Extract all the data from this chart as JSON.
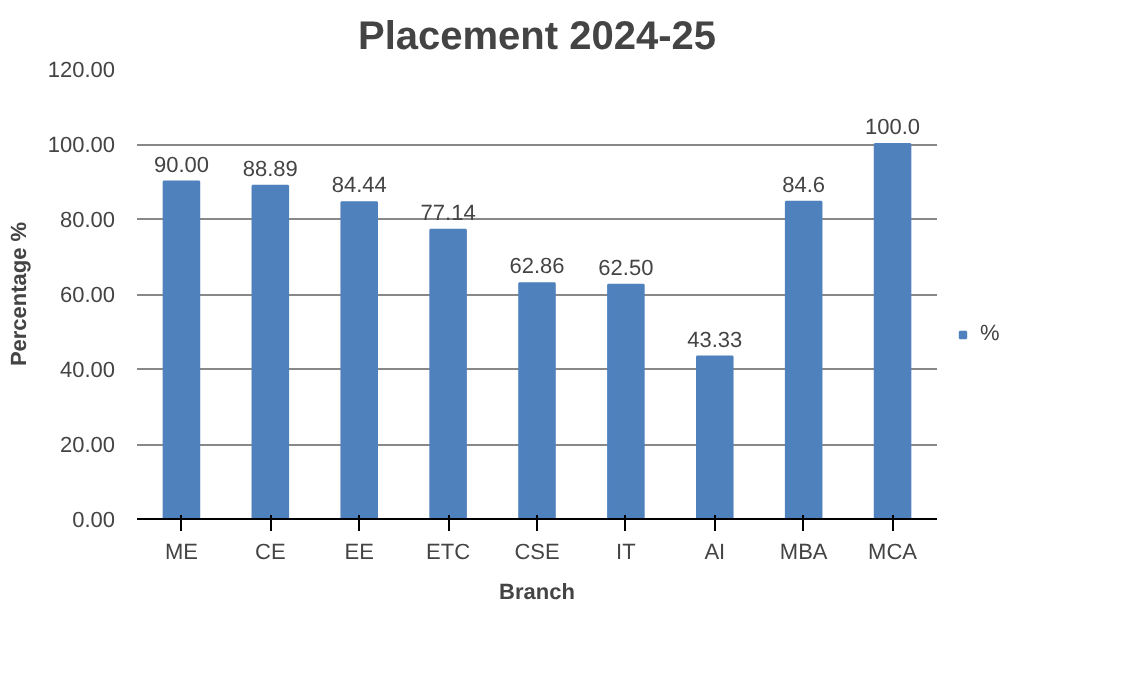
{
  "chart_data": {
    "type": "bar",
    "title": "Placement 2024-25",
    "xlabel": "Branch",
    "ylabel": "Percentage %",
    "categories": [
      "ME",
      "CE",
      "EE",
      "ETC",
      "CSE",
      "IT",
      "AI",
      "MBA",
      "MCA"
    ],
    "series": [
      {
        "name": "%",
        "color": "#4f81bd",
        "values": [
          90,
          88.89,
          84.44,
          77.14,
          62.86,
          62.5,
          43.33,
          84.6,
          100
        ],
        "value_labels": [
          "90.00",
          "88.89",
          "84.44",
          "77.14",
          "62.86",
          "62.50",
          "43.33",
          "84.6",
          "100.0"
        ]
      }
    ],
    "ylim": [
      0,
      120
    ],
    "yticks": [
      {
        "value": 0,
        "label": "0.00"
      },
      {
        "value": 20,
        "label": "20.00"
      },
      {
        "value": 40,
        "label": "40.00"
      },
      {
        "value": 60,
        "label": "60.00"
      },
      {
        "value": 80,
        "label": "80.00"
      },
      {
        "value": 100,
        "label": "100.00"
      },
      {
        "value": 120,
        "label": "120.00"
      }
    ],
    "grid": "y",
    "legend": "right"
  }
}
